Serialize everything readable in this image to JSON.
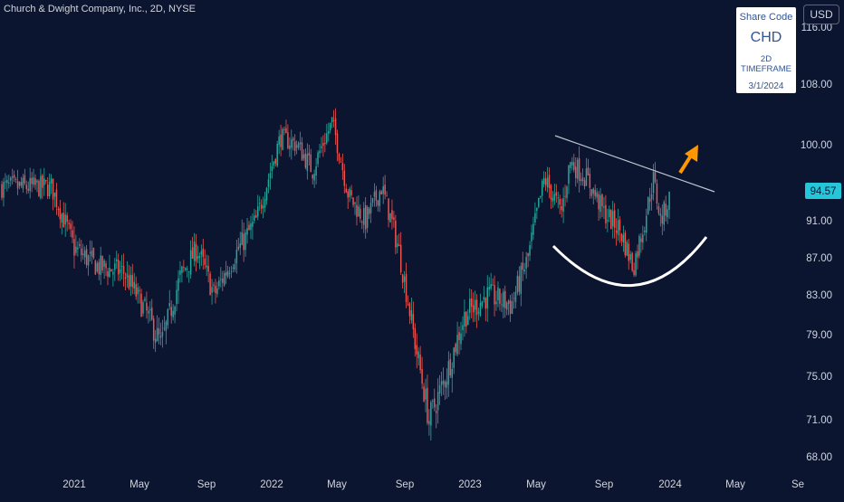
{
  "header": {
    "symbol_title": "Church & Dwight Company, Inc., 2D, NYSE",
    "currency": "USD"
  },
  "info_box": {
    "label": "Share Code",
    "code": "CHD",
    "timeframe": "2D TIMEFRAME",
    "date": "3/1/2024"
  },
  "colors": {
    "background": "#0b1530",
    "up": "#26a69a",
    "down": "#ef5350",
    "price_tag": "#26c6da",
    "trendline": "#c0c4d0",
    "cup": "#ffffff",
    "arrow": "#ff9800",
    "axis_text": "#d1d4dc"
  },
  "chart_data": {
    "type": "candlestick",
    "title": "Church & Dwight Company, Inc., 2D, NYSE",
    "x_tick_labels": [
      "2021",
      "May",
      "Sep",
      "2022",
      "May",
      "Sep",
      "2023",
      "May",
      "Sep",
      "2024",
      "May",
      "Se"
    ],
    "y_tick_labels": [
      "68.00",
      "71.00",
      "75.00",
      "79.00",
      "83.00",
      "87.00",
      "91.00",
      "100.00",
      "108.00",
      "116.00"
    ],
    "current_price": "94.57",
    "ohlc_approx": [
      {
        "date": "2020-11-20",
        "close": 95
      },
      {
        "date": "2021-01-01",
        "close": 88
      },
      {
        "date": "2021-02-15",
        "close": 86
      },
      {
        "date": "2021-04-01",
        "close": 85.5
      },
      {
        "date": "2021-05-15",
        "close": 81
      },
      {
        "date": "2021-06-10",
        "close": 78
      },
      {
        "date": "2021-07-15",
        "close": 85
      },
      {
        "date": "2021-08-15",
        "close": 88
      },
      {
        "date": "2021-09-15",
        "close": 83
      },
      {
        "date": "2021-10-20",
        "close": 87
      },
      {
        "date": "2021-12-01",
        "close": 91
      },
      {
        "date": "2022-01-15",
        "close": 101
      },
      {
        "date": "2022-02-15",
        "close": 100
      },
      {
        "date": "2022-03-15",
        "close": 97
      },
      {
        "date": "2022-04-20",
        "close": 103
      },
      {
        "date": "2022-05-20",
        "close": 94
      },
      {
        "date": "2022-06-20",
        "close": 91
      },
      {
        "date": "2022-07-20",
        "close": 95
      },
      {
        "date": "2022-08-20",
        "close": 88
      },
      {
        "date": "2022-09-20",
        "close": 78
      },
      {
        "date": "2022-10-15",
        "close": 71
      },
      {
        "date": "2022-11-15",
        "close": 75
      },
      {
        "date": "2022-12-20",
        "close": 81
      },
      {
        "date": "2023-02-01",
        "close": 83
      },
      {
        "date": "2023-03-15",
        "close": 82
      },
      {
        "date": "2023-04-15",
        "close": 87
      },
      {
        "date": "2023-05-15",
        "close": 96
      },
      {
        "date": "2023-06-15",
        "close": 92
      },
      {
        "date": "2023-07-01",
        "close": 98
      },
      {
        "date": "2023-08-01",
        "close": 96
      },
      {
        "date": "2023-09-01",
        "close": 92
      },
      {
        "date": "2023-10-01",
        "close": 90
      },
      {
        "date": "2023-10-25",
        "close": 86
      },
      {
        "date": "2023-11-15",
        "close": 91
      },
      {
        "date": "2023-12-01",
        "close": 96
      },
      {
        "date": "2023-12-15",
        "close": 91
      },
      {
        "date": "2024-01-05",
        "close": 94.57
      }
    ],
    "annotations": [
      "descending trendline",
      "rounded cup",
      "upward arrow"
    ],
    "grid": false
  }
}
